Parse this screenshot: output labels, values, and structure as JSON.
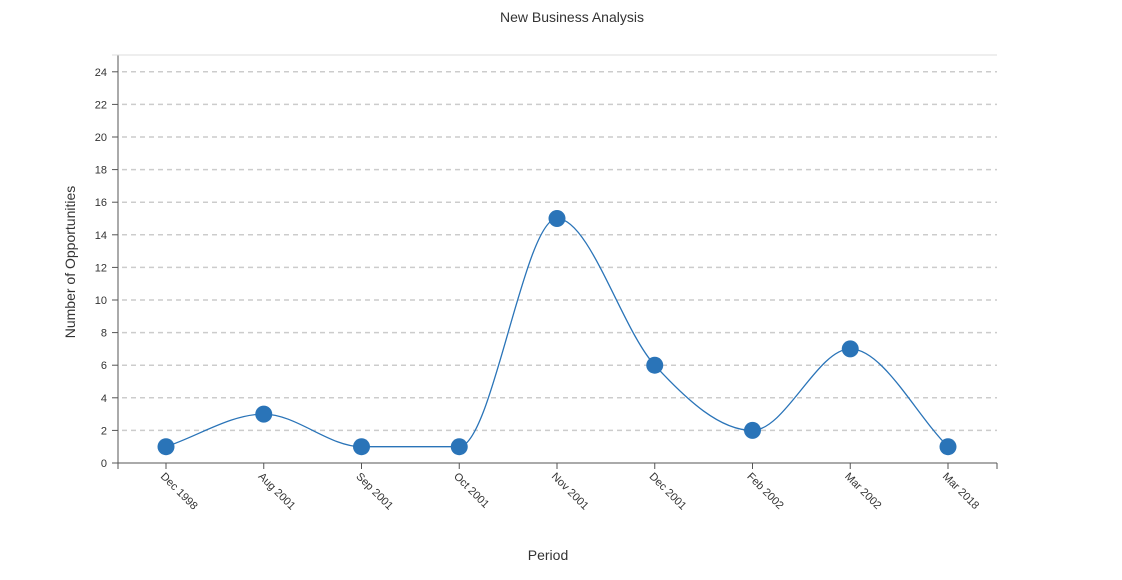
{
  "chart_data": {
    "type": "line",
    "title": "New Business Analysis",
    "xlabel": "Period",
    "ylabel": "Number of Opportunities",
    "categories": [
      "Dec 1998",
      "Aug 2001",
      "Sep 2001",
      "Oct 2001",
      "Nov 2001",
      "Dec 2001",
      "Feb 2002",
      "Mar 2002",
      "Mar 2018"
    ],
    "series": [
      {
        "name": "Number of Opportunities",
        "values": [
          1,
          3,
          1,
          1,
          15,
          6,
          2,
          7,
          1
        ]
      }
    ],
    "ylim": [
      0,
      25
    ],
    "yticks": [
      0,
      2,
      4,
      6,
      8,
      10,
      12,
      14,
      16,
      18,
      20,
      22,
      24
    ],
    "grid": true,
    "line_color": "#2a74b8",
    "point_color": "#2a74b8"
  }
}
